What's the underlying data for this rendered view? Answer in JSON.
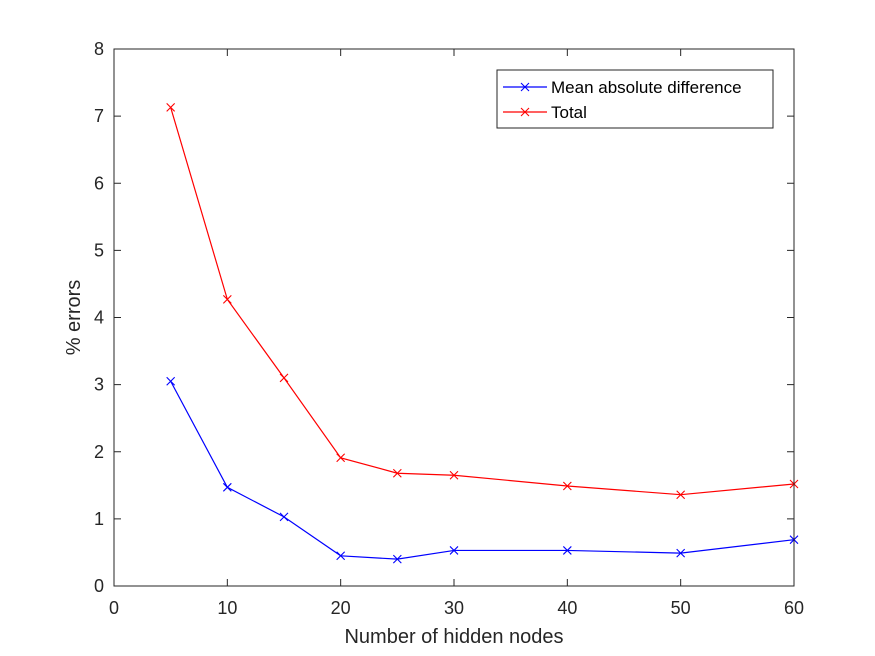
{
  "chart_data": {
    "type": "line",
    "title": "",
    "xlabel": "Number of hidden nodes",
    "ylabel": "% errors",
    "xlim": [
      0,
      60
    ],
    "ylim": [
      0,
      8
    ],
    "xticks": [
      0,
      10,
      20,
      30,
      40,
      50,
      60
    ],
    "yticks": [
      0,
      1,
      2,
      3,
      4,
      5,
      6,
      7,
      8
    ],
    "grid": false,
    "legend_position": "top-right",
    "x": [
      5,
      10,
      15,
      20,
      25,
      30,
      40,
      50,
      60
    ],
    "series": [
      {
        "name": "Mean absolute difference",
        "color": "#0000ff",
        "marker": "x",
        "values": [
          3.05,
          1.47,
          1.03,
          0.45,
          0.4,
          0.53,
          0.53,
          0.49,
          0.69
        ]
      },
      {
        "name": "Total",
        "color": "#ff0000",
        "marker": "x",
        "values": [
          7.13,
          4.27,
          3.1,
          1.91,
          1.68,
          1.65,
          1.49,
          1.36,
          1.52
        ]
      }
    ]
  }
}
